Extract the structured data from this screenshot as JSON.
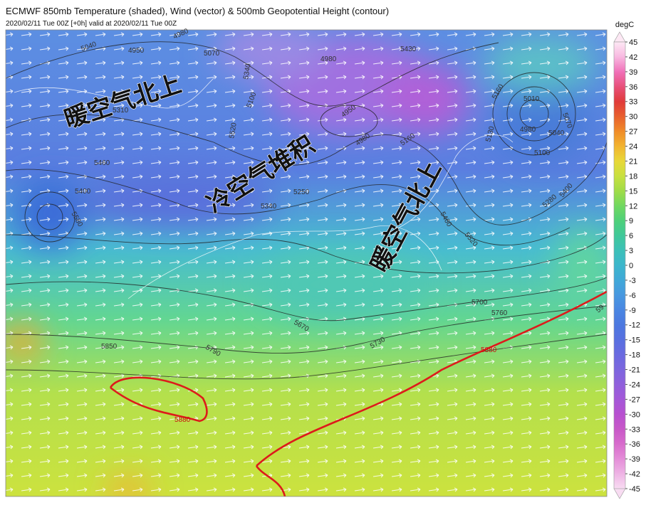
{
  "header": {
    "title": "ECMWF 850mb Temperature (shaded), Wind (vector) & 500mb Geopotential Height (contour)",
    "subtitle": "2020/02/11 Tue 00Z [+0h] valid at 2020/02/11 Tue 00Z"
  },
  "colorbar": {
    "label": "degC",
    "ticks": [
      45,
      42,
      39,
      36,
      33,
      30,
      27,
      24,
      21,
      18,
      15,
      12,
      9,
      6,
      3,
      0,
      -3,
      -6,
      -9,
      -12,
      -15,
      -18,
      -21,
      -24,
      -27,
      -30,
      -33,
      -36,
      -39,
      -42,
      -45
    ],
    "colors": [
      "#fde8f4",
      "#f8b8e0",
      "#f070b8",
      "#e8507a",
      "#e03a3a",
      "#e8602e",
      "#f08c28",
      "#f2b430",
      "#e8d838",
      "#c8e040",
      "#a0dc48",
      "#70d860",
      "#4ed07a",
      "#40c89a",
      "#3cc0b8",
      "#3cb6cc",
      "#40a8d8",
      "#4898e0",
      "#4a86e2",
      "#4c78e0",
      "#5870e0",
      "#6a6ae0",
      "#7c66de",
      "#9060dc",
      "#a458d8",
      "#b850d0",
      "#c858c8",
      "#d86ccc",
      "#e48ed8",
      "#eeb4e4",
      "#f8dcf2"
    ]
  },
  "annotations": [
    "暖空气北上",
    "冷空气堆积",
    "暖空气北上"
  ],
  "contour_labels": [
    "5040",
    "4950",
    "4980",
    "5070",
    "5340",
    "5100",
    "4980",
    "5430",
    "5160",
    "4950",
    "4980",
    "5130",
    "5160",
    "5010",
    "5070",
    "4980",
    "5040",
    "5100",
    "5280",
    "5400",
    "5310",
    "5460",
    "5400",
    "5580",
    "5520",
    "5250",
    "5340",
    "5460",
    "5520",
    "5670",
    "5700",
    "5760",
    "5730",
    "5790",
    "5850",
    "5880",
    "5880",
    "59"
  ]
}
